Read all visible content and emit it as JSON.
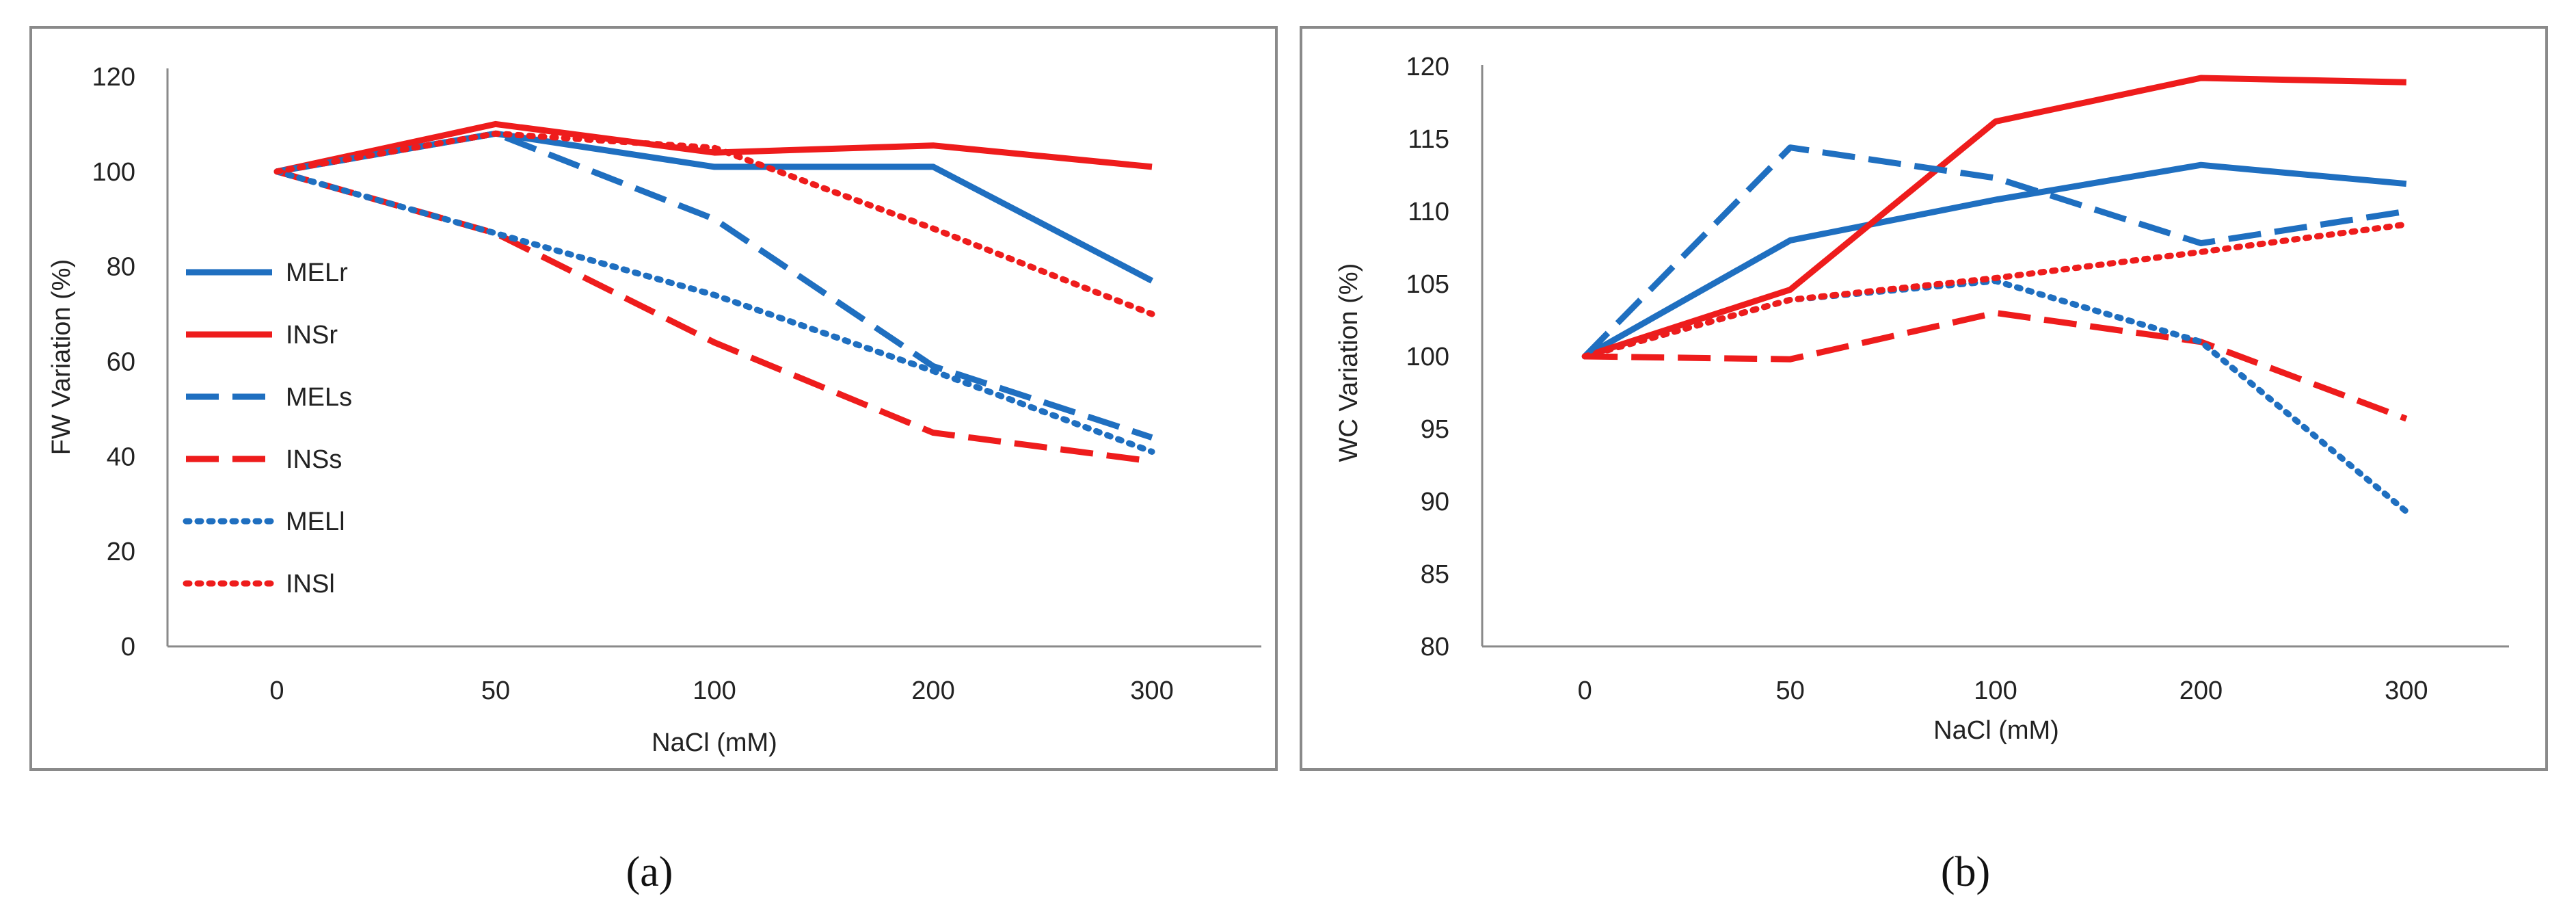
{
  "colors": {
    "mel": "#1f6fc0",
    "ins": "#ee1c1c",
    "frame": "#8a8a8a",
    "axis": "#8a8a8a"
  },
  "chart_data": [
    {
      "type": "line",
      "caption": "(a)",
      "xlabel": "NaCl (mM)",
      "ylabel": "FW Variation (%)",
      "categories": [
        "0",
        "50",
        "100",
        "200",
        "300"
      ],
      "ylim": [
        0,
        120
      ],
      "yticks": [
        "0",
        "20",
        "40",
        "60",
        "80",
        "100",
        "120"
      ],
      "legend_position": "left",
      "series": [
        {
          "name": "MELr",
          "color": "#1f6fc0",
          "style": "solid",
          "values": [
            100,
            108,
            101,
            101,
            77
          ]
        },
        {
          "name": "INSr",
          "color": "#ee1c1c",
          "style": "solid",
          "values": [
            100,
            110,
            104,
            105.5,
            101
          ]
        },
        {
          "name": "MELs",
          "color": "#1f6fc0",
          "style": "dashed",
          "values": [
            100,
            108,
            90,
            59,
            44
          ]
        },
        {
          "name": "INSs",
          "color": "#ee1c1c",
          "style": "dashed",
          "values": [
            100,
            87,
            64,
            45,
            39
          ]
        },
        {
          "name": "MELl",
          "color": "#1f6fc0",
          "style": "dotted",
          "values": [
            100,
            87,
            74,
            58,
            41
          ]
        },
        {
          "name": "INSl",
          "color": "#ee1c1c",
          "style": "dotted",
          "values": [
            100,
            108,
            105,
            88,
            70
          ]
        }
      ]
    },
    {
      "type": "line",
      "caption": "(b)",
      "xlabel": "NaCl (mM)",
      "ylabel": "WC Variation (%)",
      "categories": [
        "0",
        "50",
        "100",
        "200",
        "300"
      ],
      "ylim": [
        80,
        120
      ],
      "yticks": [
        "80",
        "85",
        "90",
        "95",
        "100",
        "105",
        "110",
        "115",
        "120"
      ],
      "series": [
        {
          "name": "MELr",
          "color": "#1f6fc0",
          "style": "solid",
          "values": [
            100,
            108,
            110.8,
            113.2,
            111.9
          ]
        },
        {
          "name": "INSr",
          "color": "#ee1c1c",
          "style": "solid",
          "values": [
            100,
            104.6,
            116.2,
            119.2,
            118.9
          ]
        },
        {
          "name": "MELs",
          "color": "#1f6fc0",
          "style": "dashed",
          "values": [
            100,
            114.4,
            112.3,
            107.8,
            110
          ]
        },
        {
          "name": "INSs",
          "color": "#ee1c1c",
          "style": "dashed",
          "values": [
            100,
            99.8,
            103,
            101,
            95.7
          ]
        },
        {
          "name": "MELl",
          "color": "#1f6fc0",
          "style": "dotted",
          "values": [
            100,
            103.9,
            105.2,
            101,
            89.3
          ]
        },
        {
          "name": "INSl",
          "color": "#ee1c1c",
          "style": "dotted",
          "values": [
            100,
            103.9,
            105.4,
            107.2,
            109.1
          ]
        }
      ]
    }
  ]
}
